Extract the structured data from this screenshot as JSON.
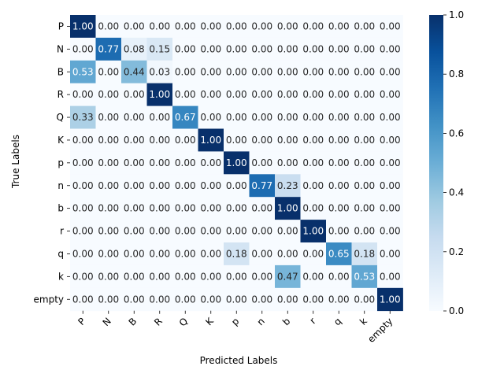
{
  "chart_data": {
    "type": "heatmap",
    "title": "",
    "xlabel": "Predicted Labels",
    "ylabel": "True Labels",
    "x_categories": [
      "P",
      "N",
      "B",
      "R",
      "Q",
      "K",
      "p",
      "n",
      "b",
      "r",
      "q",
      "k",
      "empty"
    ],
    "y_categories": [
      "P",
      "N",
      "B",
      "R",
      "Q",
      "K",
      "p",
      "n",
      "b",
      "r",
      "q",
      "k",
      "empty"
    ],
    "values": [
      [
        1.0,
        0.0,
        0.0,
        0.0,
        0.0,
        0.0,
        0.0,
        0.0,
        0.0,
        0.0,
        0.0,
        0.0,
        0.0
      ],
      [
        0.0,
        0.77,
        0.08,
        0.15,
        0.0,
        0.0,
        0.0,
        0.0,
        0.0,
        0.0,
        0.0,
        0.0,
        0.0
      ],
      [
        0.53,
        0.0,
        0.44,
        0.03,
        0.0,
        0.0,
        0.0,
        0.0,
        0.0,
        0.0,
        0.0,
        0.0,
        0.0
      ],
      [
        0.0,
        0.0,
        0.0,
        1.0,
        0.0,
        0.0,
        0.0,
        0.0,
        0.0,
        0.0,
        0.0,
        0.0,
        0.0
      ],
      [
        0.33,
        0.0,
        0.0,
        0.0,
        0.67,
        0.0,
        0.0,
        0.0,
        0.0,
        0.0,
        0.0,
        0.0,
        0.0
      ],
      [
        0.0,
        0.0,
        0.0,
        0.0,
        0.0,
        1.0,
        0.0,
        0.0,
        0.0,
        0.0,
        0.0,
        0.0,
        0.0
      ],
      [
        0.0,
        0.0,
        0.0,
        0.0,
        0.0,
        0.0,
        1.0,
        0.0,
        0.0,
        0.0,
        0.0,
        0.0,
        0.0
      ],
      [
        0.0,
        0.0,
        0.0,
        0.0,
        0.0,
        0.0,
        0.0,
        0.77,
        0.23,
        0.0,
        0.0,
        0.0,
        0.0
      ],
      [
        0.0,
        0.0,
        0.0,
        0.0,
        0.0,
        0.0,
        0.0,
        0.0,
        1.0,
        0.0,
        0.0,
        0.0,
        0.0
      ],
      [
        0.0,
        0.0,
        0.0,
        0.0,
        0.0,
        0.0,
        0.0,
        0.0,
        0.0,
        1.0,
        0.0,
        0.0,
        0.0
      ],
      [
        0.0,
        0.0,
        0.0,
        0.0,
        0.0,
        0.0,
        0.18,
        0.0,
        0.0,
        0.0,
        0.65,
        0.18,
        0.0
      ],
      [
        0.0,
        0.0,
        0.0,
        0.0,
        0.0,
        0.0,
        0.0,
        0.0,
        0.47,
        0.0,
        0.0,
        0.53,
        0.0
      ],
      [
        0.0,
        0.0,
        0.0,
        0.0,
        0.0,
        0.0,
        0.0,
        0.0,
        0.0,
        0.0,
        0.0,
        0.0,
        1.0
      ]
    ],
    "value_format": "2 decimals",
    "color_scale": {
      "name": "Blues",
      "range": [
        0.0,
        1.0
      ],
      "low_color": "#f7fbff",
      "high_color": "#08306b"
    },
    "colorbar_ticks": [
      "0.0",
      "0.2",
      "0.4",
      "0.6",
      "0.8",
      "1.0"
    ],
    "text_color_light": "#ffffff",
    "text_color_dark": "#262626"
  }
}
